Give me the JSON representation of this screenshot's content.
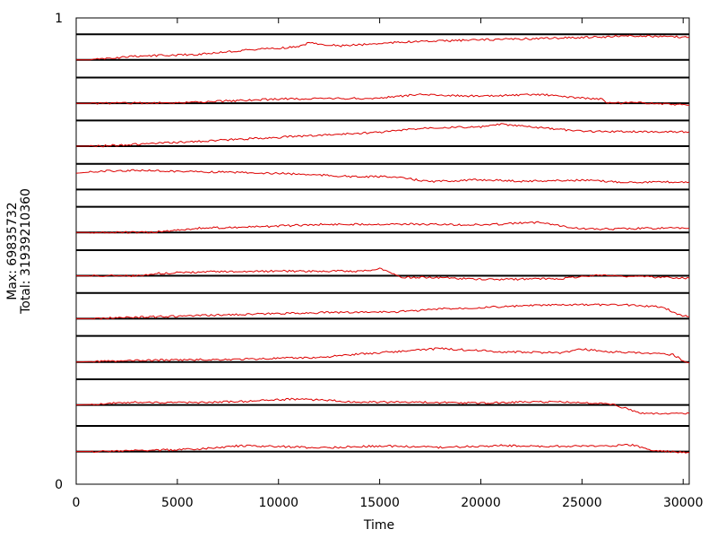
{
  "chart_data": {
    "type": "line",
    "title": "",
    "xlabel": "Time",
    "ylabel_lines": [
      "Max: 69835732",
      "Total: 31939210360"
    ],
    "xlim": [
      0,
      30300
    ],
    "ylim": [
      0,
      1
    ],
    "x_ticks": [
      0,
      5000,
      10000,
      15000,
      20000,
      25000,
      30000
    ],
    "x_tick_labels": [
      "0",
      "5000",
      "10000",
      "15000",
      "20000",
      "25000",
      "30000"
    ],
    "y_tick_labels": [
      "0",
      "1"
    ],
    "grid": false,
    "legend": "none",
    "band_boundaries": [
      0.07,
      0.125,
      0.17,
      0.225,
      0.262,
      0.318,
      0.355,
      0.41,
      0.447,
      0.502,
      0.54,
      0.595,
      0.632,
      0.687,
      0.725,
      0.78,
      0.817,
      0.872,
      0.91,
      0.965
    ],
    "colors": {
      "series": "#dd0000",
      "band_line": "#000000",
      "axis": "#000000"
    },
    "series": [
      {
        "baseline": 0.91,
        "x": [
          0,
          700,
          3000,
          6000,
          9000,
          11000,
          11500,
          13000,
          16000,
          20000,
          24000,
          26500,
          27000,
          30300
        ],
        "y": [
          0.91,
          0.91,
          0.918,
          0.922,
          0.933,
          0.938,
          0.947,
          0.94,
          0.948,
          0.953,
          0.957,
          0.96,
          0.962,
          0.959
        ]
      },
      {
        "baseline": 0.817,
        "x": [
          0,
          700,
          5000,
          10000,
          15000,
          17000,
          20000,
          23000,
          25000,
          26000,
          26200,
          28000,
          30300
        ],
        "y": [
          0.817,
          0.817,
          0.818,
          0.826,
          0.828,
          0.836,
          0.832,
          0.836,
          0.828,
          0.826,
          0.817,
          0.818,
          0.813
        ]
      },
      {
        "baseline": 0.725,
        "x": [
          0,
          1000,
          5000,
          10000,
          15000,
          17500,
          20000,
          21000,
          23000,
          25000,
          28000,
          30300
        ],
        "y": [
          0.725,
          0.725,
          0.733,
          0.744,
          0.755,
          0.765,
          0.766,
          0.772,
          0.764,
          0.757,
          0.756,
          0.756
        ]
      },
      {
        "baseline": 0.632,
        "x": [
          0,
          1500,
          3000,
          6000,
          9000,
          11000,
          14000,
          15500,
          17500,
          20000,
          22000,
          25000,
          27000,
          30300
        ],
        "y": [
          0.667,
          0.672,
          0.673,
          0.67,
          0.668,
          0.665,
          0.659,
          0.66,
          0.649,
          0.653,
          0.65,
          0.652,
          0.648,
          0.648
        ]
      },
      {
        "baseline": 0.54,
        "x": [
          0,
          1500,
          3800,
          6000,
          9000,
          12000,
          16000,
          20000,
          23000,
          24000,
          25000,
          26000,
          28500,
          30300
        ],
        "y": [
          0.54,
          0.54,
          0.54,
          0.549,
          0.552,
          0.557,
          0.558,
          0.556,
          0.562,
          0.554,
          0.548,
          0.547,
          0.549,
          0.549
        ]
      },
      {
        "baseline": 0.447,
        "x": [
          0,
          3000,
          4000,
          7000,
          10000,
          14000,
          15000,
          15700,
          16000,
          18000,
          20500,
          24000,
          25800,
          26500,
          30300
        ],
        "y": [
          0.447,
          0.447,
          0.452,
          0.456,
          0.457,
          0.457,
          0.462,
          0.452,
          0.444,
          0.443,
          0.439,
          0.441,
          0.449,
          0.447,
          0.442
        ]
      },
      {
        "baseline": 0.355,
        "x": [
          0,
          700,
          4000,
          8000,
          12000,
          16000,
          18000,
          20000,
          23000,
          26000,
          27500,
          29000,
          29800,
          30300
        ],
        "y": [
          0.355,
          0.355,
          0.359,
          0.364,
          0.368,
          0.37,
          0.376,
          0.379,
          0.384,
          0.385,
          0.384,
          0.38,
          0.363,
          0.36
        ]
      },
      {
        "baseline": 0.262,
        "x": [
          0,
          700,
          4000,
          8000,
          12000,
          14000,
          18000,
          21000,
          24000,
          25000,
          26000,
          29500,
          30000,
          30300
        ],
        "y": [
          0.262,
          0.263,
          0.266,
          0.268,
          0.272,
          0.279,
          0.291,
          0.284,
          0.282,
          0.29,
          0.285,
          0.278,
          0.265,
          0.26
        ]
      },
      {
        "baseline": 0.17,
        "x": [
          0,
          700,
          3000,
          5500,
          8000,
          11000,
          14000,
          16000,
          20000,
          22000,
          24000,
          26500,
          27500,
          28000,
          30300
        ],
        "y": [
          0.17,
          0.171,
          0.176,
          0.175,
          0.177,
          0.183,
          0.176,
          0.176,
          0.174,
          0.176,
          0.177,
          0.171,
          0.158,
          0.152,
          0.152
        ]
      },
      {
        "baseline": 0.07,
        "x": [
          0,
          700,
          3000,
          6000,
          8000,
          10000,
          12000,
          15000,
          18000,
          21000,
          23000,
          26000,
          27500,
          28500,
          30300
        ],
        "y": [
          0.07,
          0.07,
          0.072,
          0.075,
          0.082,
          0.081,
          0.078,
          0.082,
          0.079,
          0.083,
          0.081,
          0.082,
          0.084,
          0.072,
          0.068
        ]
      }
    ]
  }
}
